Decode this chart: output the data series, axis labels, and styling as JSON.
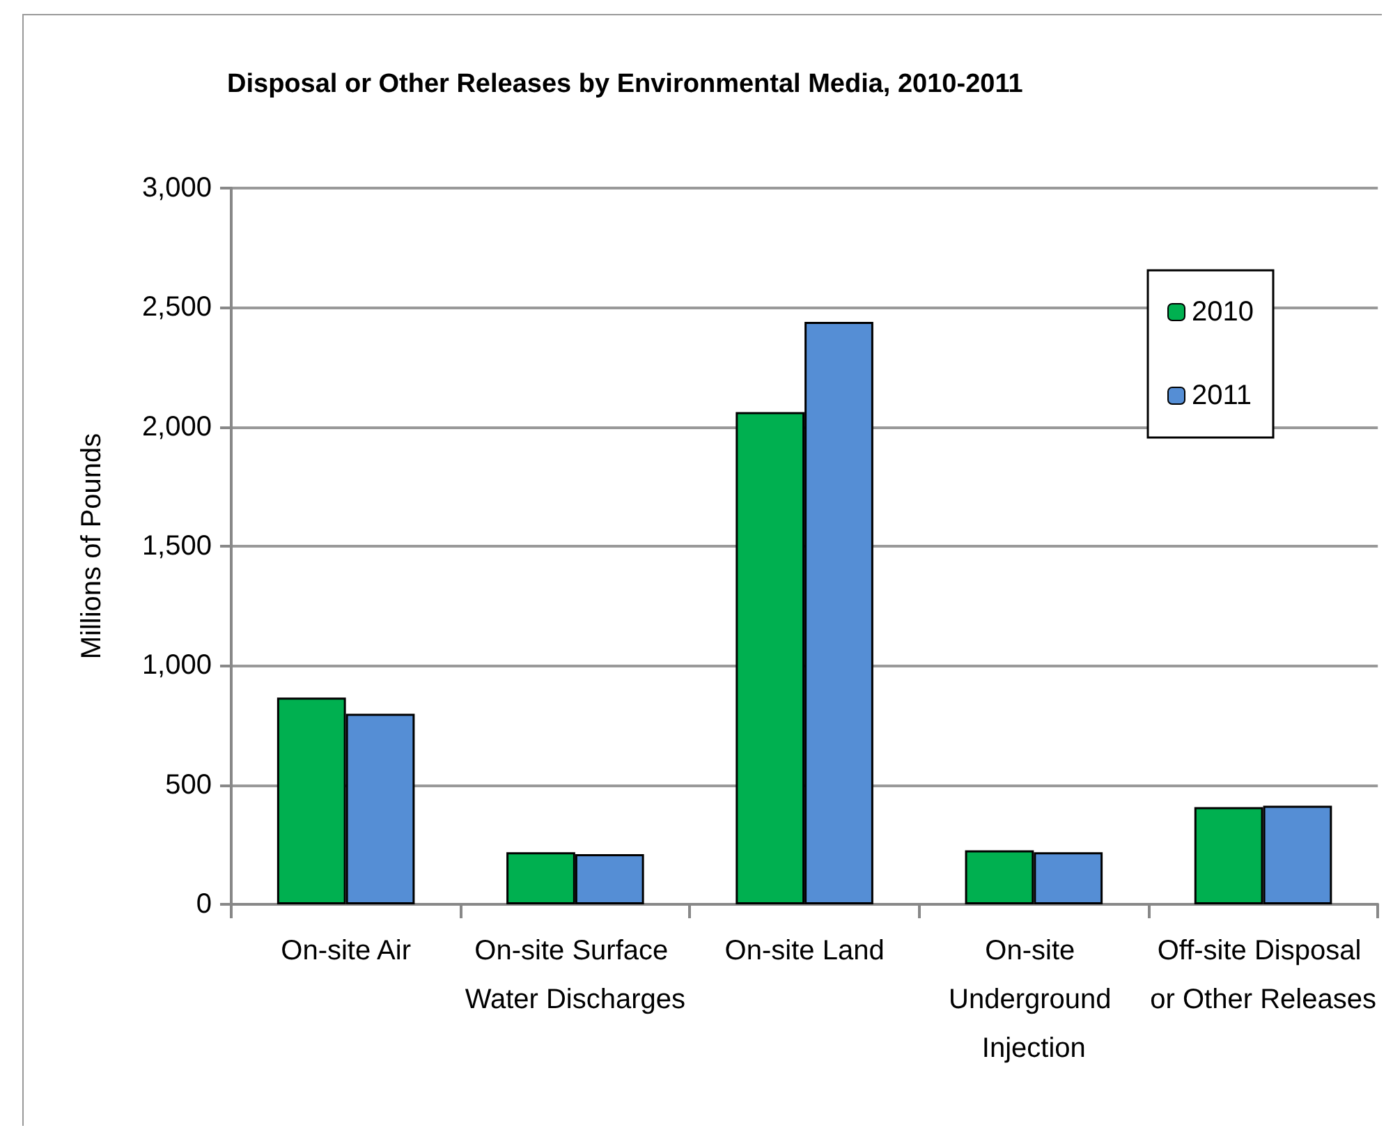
{
  "chart_data": {
    "type": "bar",
    "title": "Disposal or Other Releases by Environmental Media, 2010-2011",
    "ylabel": "Millions of Pounds",
    "categories": [
      "On-site Air",
      "On-site Surface Water Discharges",
      "On-site Land",
      "On-site Underground Injection",
      "Off-site Disposal or Other Releases"
    ],
    "series": [
      {
        "name": "2010",
        "color": "#00b050",
        "values": [
          866,
          218,
          2062,
          226,
          407
        ]
      },
      {
        "name": "2011",
        "color": "#558ed5",
        "values": [
          798,
          210,
          2440,
          218,
          413
        ]
      }
    ],
    "ylim": [
      0,
      3000
    ],
    "yticks": [
      0,
      500,
      {
        "value": 1000,
        "label": "1,000"
      },
      {
        "value": 1500,
        "label": "1,500"
      },
      {
        "value": 2000,
        "label": "2,000"
      },
      {
        "value": 2500,
        "label": "2,500"
      },
      {
        "value": 3000,
        "label": "3,000"
      }
    ],
    "grid": "y",
    "legend": "top right"
  }
}
